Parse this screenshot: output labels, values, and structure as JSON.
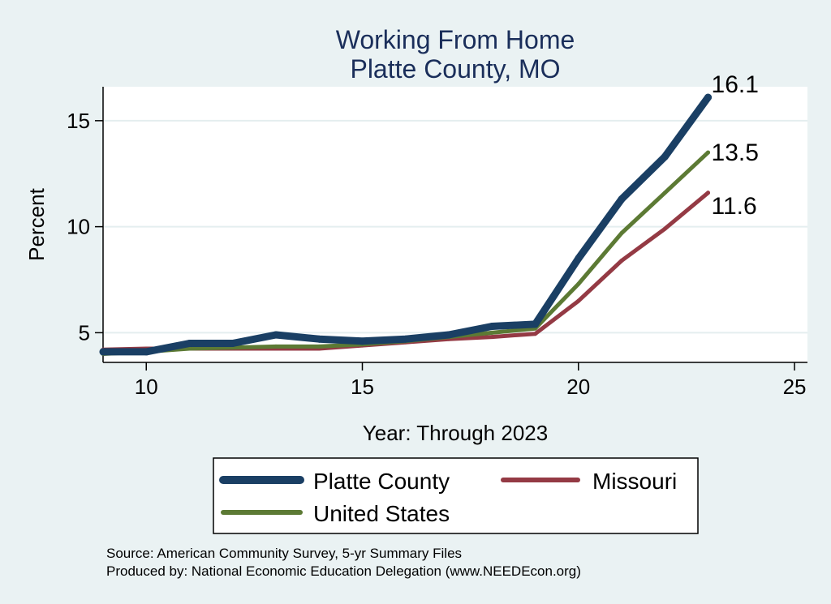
{
  "chart_data": {
    "type": "line",
    "title": [
      "Working From Home",
      "Platte County, MO"
    ],
    "xlabel": "Year: Through 2023",
    "ylabel": "Percent",
    "xlim": [
      9,
      25.3
    ],
    "ylim": [
      3.6,
      16.6
    ],
    "xticks": [
      10,
      15,
      20,
      25
    ],
    "yticks": [
      5,
      10,
      15
    ],
    "grid": "horizontal",
    "x": [
      9,
      10,
      11,
      12,
      13,
      14,
      15,
      16,
      17,
      18,
      19,
      20,
      21,
      22,
      23
    ],
    "series": [
      {
        "name": "Platte County",
        "color": "#1a3f64",
        "values": [
          4.1,
          4.1,
          4.5,
          4.5,
          4.9,
          4.7,
          4.6,
          4.7,
          4.9,
          5.3,
          5.4,
          8.5,
          11.3,
          13.3,
          16.1
        ],
        "end_label": "16.1"
      },
      {
        "name": "Missouri",
        "color": "#943a44",
        "values": [
          4.2,
          4.25,
          4.25,
          4.25,
          4.25,
          4.25,
          4.4,
          4.55,
          4.7,
          4.8,
          4.95,
          6.5,
          8.4,
          9.9,
          11.6
        ],
        "end_label": "11.6"
      },
      {
        "name": "United States",
        "color": "#5c7a34",
        "values": [
          4.0,
          4.1,
          4.25,
          4.3,
          4.35,
          4.35,
          4.45,
          4.6,
          4.8,
          5.0,
          5.2,
          7.3,
          9.7,
          11.6,
          13.5
        ],
        "end_label": "13.5"
      }
    ],
    "legend": {
      "position": "bottom",
      "entries": [
        "Platte County",
        "Missouri",
        "United States"
      ]
    },
    "notes": [
      "Source: American Community Survey, 5-yr Summary Files",
      "Produced by: National Economic Education Delegation (www.NEEDEcon.org)"
    ]
  }
}
